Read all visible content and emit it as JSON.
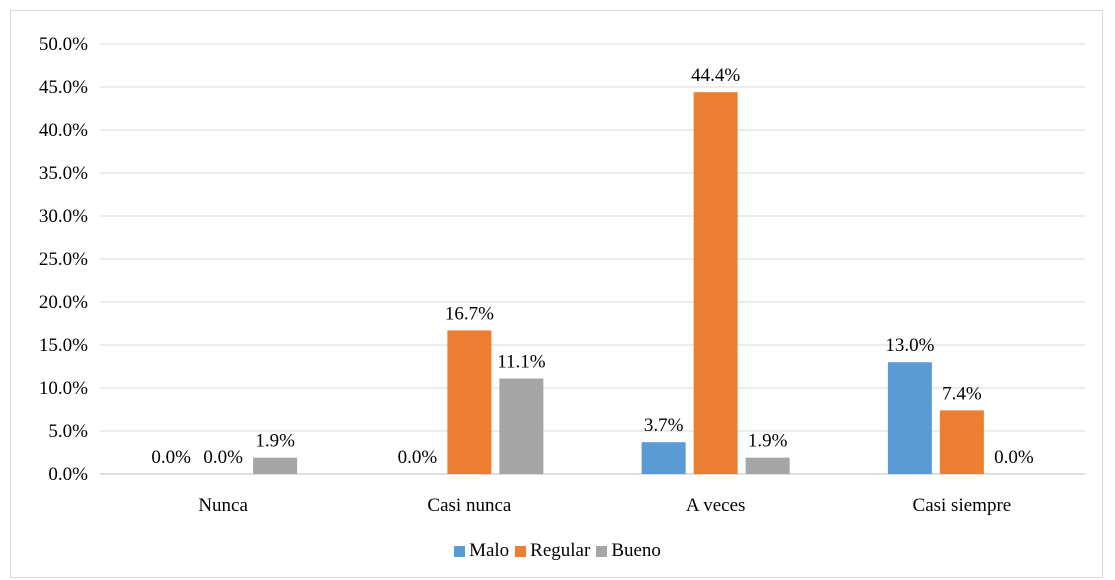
{
  "chart_data": {
    "type": "bar",
    "categories": [
      "Nunca",
      "Casi nunca",
      "A veces",
      "Casi siempre"
    ],
    "series": [
      {
        "name": "Malo",
        "color": "#5B9BD5",
        "values": [
          0.0,
          0.0,
          3.7,
          13.0
        ],
        "labels": [
          "0.0%",
          "0.0%",
          "3.7%",
          "13.0%"
        ]
      },
      {
        "name": "Regular",
        "color": "#ED7D31",
        "values": [
          0.0,
          16.7,
          44.4,
          7.4
        ],
        "labels": [
          "0.0%",
          "16.7%",
          "44.4%",
          "7.4%"
        ]
      },
      {
        "name": "Bueno",
        "color": "#A5A5A5",
        "values": [
          1.9,
          11.1,
          1.9,
          0.0
        ],
        "labels": [
          "1.9%",
          "11.1%",
          "1.9%",
          "0.0%"
        ]
      }
    ],
    "yticks": [
      "0.0%",
      "5.0%",
      "10.0%",
      "15.0%",
      "20.0%",
      "25.0%",
      "30.0%",
      "35.0%",
      "40.0%",
      "45.0%",
      "50.0%"
    ],
    "ylim": [
      0,
      50
    ],
    "grid": true,
    "legend_position": "bottom"
  }
}
